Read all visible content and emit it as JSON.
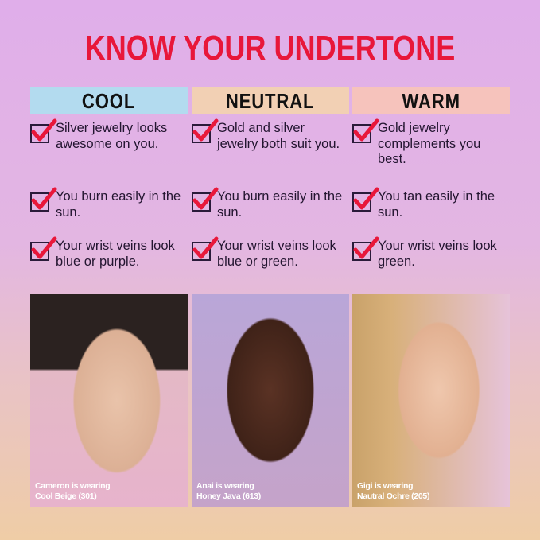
{
  "title": "KNOW YOUR UNDERTONE",
  "columns": [
    {
      "name": "COOL",
      "color": "#b3dbef",
      "items": [
        "Silver jewelry looks awesome on you.",
        "You burn easily in the sun.",
        "Your wrist veins look blue or purple."
      ],
      "caption": [
        "Cameron is wearing",
        "Cool Beige (301)"
      ]
    },
    {
      "name": "NEUTRAL",
      "color": "#f2d0b4",
      "items": [
        "Gold and silver jewelry both suit you.",
        "You burn easily in the sun.",
        "Your wrist veins look blue or green."
      ],
      "caption": [
        "Anai is wearing",
        "Honey Java (613)"
      ]
    },
    {
      "name": "WARM",
      "color": "#f6c3bc",
      "items": [
        "Gold jewelry complements you best.",
        "You tan easily in the sun.",
        "Your wrist veins look green."
      ],
      "caption": [
        "Gigi is wearing",
        "Nautral Ochre (205)"
      ]
    }
  ],
  "colors": {
    "accent": "#e8173a"
  }
}
